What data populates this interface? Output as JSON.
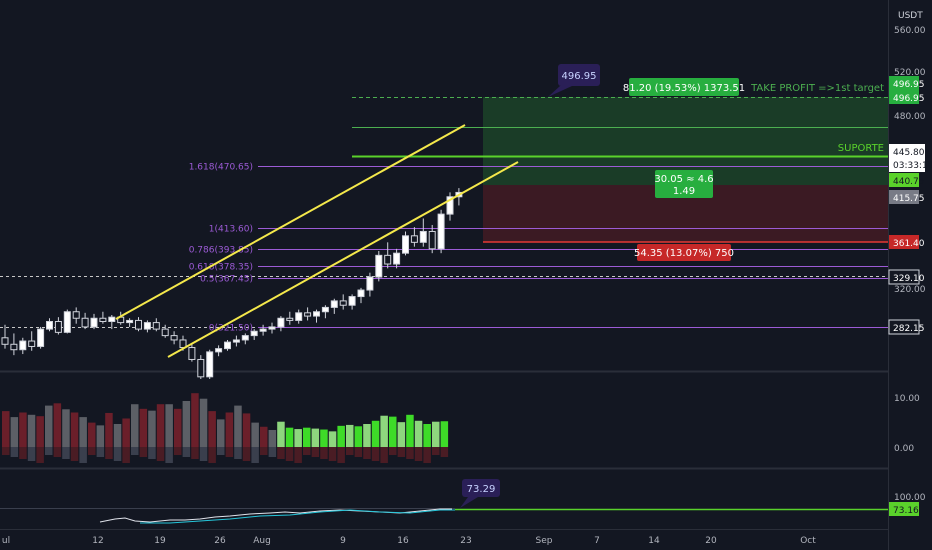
{
  "chart_data": [
    {
      "type": "candlestick",
      "title": "",
      "currency": "USDT",
      "x_ticks": [
        "ul",
        "12",
        "19",
        "26",
        "Aug",
        "9",
        "16",
        "23",
        "Sep",
        "7",
        "14",
        "20",
        "Oct"
      ],
      "y_ticks": [
        "560.00",
        "520.00",
        "480.00",
        "320.00"
      ],
      "candles": [
        [
          0,
          312,
          324,
          302,
          306
        ],
        [
          1,
          306,
          316,
          296,
          301
        ],
        [
          2,
          301,
          312,
          297,
          309
        ],
        [
          3,
          309,
          318,
          300,
          304
        ],
        [
          4,
          304,
          322,
          302,
          320
        ],
        [
          5,
          320,
          330,
          318,
          327
        ],
        [
          6,
          327,
          331,
          315,
          317
        ],
        [
          7,
          317,
          338,
          316,
          336
        ],
        [
          8,
          336,
          340,
          325,
          330
        ],
        [
          9,
          330,
          335,
          320,
          322
        ],
        [
          10,
          322,
          334,
          320,
          330
        ],
        [
          11,
          330,
          336,
          325,
          327
        ],
        [
          12,
          327,
          333,
          320,
          331
        ],
        [
          13,
          331,
          336,
          324,
          326
        ],
        [
          14,
          326,
          330,
          322,
          328
        ],
        [
          15,
          328,
          331,
          318,
          320
        ],
        [
          16,
          320,
          328,
          317,
          326
        ],
        [
          17,
          326,
          330,
          318,
          320
        ],
        [
          18,
          320,
          324,
          312,
          314
        ],
        [
          19,
          314,
          318,
          306,
          310
        ],
        [
          20,
          310,
          314,
          300,
          303
        ],
        [
          21,
          303,
          306,
          290,
          292
        ],
        [
          22,
          292,
          296,
          274,
          276
        ],
        [
          23,
          276,
          301,
          274,
          299
        ],
        [
          24,
          299,
          305,
          295,
          302
        ],
        [
          25,
          302,
          310,
          300,
          308
        ],
        [
          26,
          308,
          314,
          304,
          310
        ],
        [
          27,
          310,
          316,
          306,
          314
        ],
        [
          28,
          314,
          320,
          310,
          318
        ],
        [
          29,
          318,
          324,
          314,
          320
        ],
        [
          30,
          320,
          326,
          316,
          322
        ],
        [
          31,
          322,
          332,
          318,
          330
        ],
        [
          32,
          330,
          336,
          324,
          328
        ],
        [
          33,
          328,
          338,
          325,
          335
        ],
        [
          34,
          335,
          340,
          328,
          332
        ],
        [
          35,
          332,
          338,
          326,
          336
        ],
        [
          36,
          336,
          342,
          330,
          340
        ],
        [
          37,
          340,
          348,
          334,
          346
        ],
        [
          38,
          346,
          352,
          338,
          342
        ],
        [
          39,
          342,
          352,
          338,
          350
        ],
        [
          40,
          350,
          358,
          344,
          356
        ],
        [
          41,
          356,
          372,
          350,
          368
        ],
        [
          42,
          368,
          392,
          364,
          388
        ],
        [
          43,
          388,
          400,
          376,
          380
        ],
        [
          44,
          380,
          394,
          376,
          390
        ],
        [
          45,
          390,
          410,
          388,
          406
        ],
        [
          46,
          406,
          414,
          396,
          400
        ],
        [
          47,
          400,
          422,
          396,
          410
        ],
        [
          48,
          410,
          416,
          390,
          394
        ],
        [
          49,
          394,
          430,
          390,
          426
        ],
        [
          50,
          426,
          446,
          420,
          442
        ],
        [
          51,
          442,
          450,
          434,
          446
        ]
      ],
      "volume": {
        "tick_labels": [
          "10.00",
          "0.00"
        ],
        "bars": [
          [
            0,
            7.8,
            "maroon"
          ],
          [
            1,
            6.5,
            "gray"
          ],
          [
            2,
            7.5,
            "maroon"
          ],
          [
            3,
            7.0,
            "gray"
          ],
          [
            4,
            6.7,
            "maroon"
          ],
          [
            5,
            9.0,
            "gray"
          ],
          [
            6,
            9.5,
            "maroon"
          ],
          [
            7,
            8.2,
            "gray"
          ],
          [
            8,
            7.5,
            "maroon"
          ],
          [
            9,
            6.5,
            "gray"
          ],
          [
            10,
            5.3,
            "maroon"
          ],
          [
            11,
            4.7,
            "gray"
          ],
          [
            12,
            7.4,
            "maroon"
          ],
          [
            13,
            5.0,
            "gray"
          ],
          [
            14,
            6.2,
            "maroon"
          ],
          [
            15,
            9.3,
            "gray"
          ],
          [
            16,
            8.3,
            "maroon"
          ],
          [
            17,
            7.9,
            "gray"
          ],
          [
            18,
            9.3,
            "maroon"
          ],
          [
            19,
            9.3,
            "gray"
          ],
          [
            20,
            8.3,
            "maroon"
          ],
          [
            21,
            10.0,
            "gray"
          ],
          [
            22,
            11.7,
            "maroon"
          ],
          [
            23,
            10.5,
            "gray"
          ],
          [
            24,
            7.8,
            "maroon"
          ],
          [
            25,
            6.0,
            "gray"
          ],
          [
            26,
            7.5,
            "maroon"
          ],
          [
            27,
            9.0,
            "gray"
          ],
          [
            28,
            7.3,
            "maroon"
          ],
          [
            29,
            5.3,
            "gray"
          ],
          [
            30,
            4.4,
            "maroon"
          ],
          [
            31,
            3.7,
            "gray"
          ],
          [
            32,
            5.5,
            "lightgreen"
          ],
          [
            33,
            4.2,
            "green"
          ],
          [
            34,
            3.9,
            "lightgreen"
          ],
          [
            35,
            4.2,
            "green"
          ],
          [
            36,
            4.0,
            "lightgreen"
          ],
          [
            37,
            3.8,
            "green"
          ],
          [
            38,
            3.4,
            "lightgreen"
          ],
          [
            39,
            4.6,
            "green"
          ],
          [
            40,
            4.8,
            "lightgreen"
          ],
          [
            41,
            4.5,
            "green"
          ],
          [
            42,
            5.0,
            "lightgreen"
          ],
          [
            43,
            5.7,
            "green"
          ],
          [
            44,
            6.8,
            "lightgreen"
          ],
          [
            45,
            6.6,
            "green"
          ],
          [
            46,
            5.4,
            "lightgreen"
          ],
          [
            47,
            7.0,
            "green"
          ],
          [
            48,
            5.7,
            "lightgreen"
          ],
          [
            49,
            5.0,
            "green"
          ],
          [
            50,
            5.5,
            "lightgreen"
          ],
          [
            51,
            5.6,
            "green"
          ]
        ]
      },
      "fib_levels": [
        {
          "label": "1.618(470.65)",
          "value": 470.65
        },
        {
          "label": "1(413.60)",
          "value": 413.6
        },
        {
          "label": "0.786(393.85)",
          "value": 393.85
        },
        {
          "label": "0.618(378.35)",
          "value": 378.35
        },
        {
          "label": "0.5(367.45)",
          "value": 367.45
        },
        {
          "label": "0(321.50)",
          "value": 321.5
        }
      ],
      "dashed_levels": [
        329.1,
        282.15
      ],
      "annotations": {
        "target_callout": "496.95",
        "take_profit_label": "TAKE PROFIT =>1st target",
        "take_profit_box": "81.20 (19.53%) 1373.51",
        "support_label": "SUPORTE",
        "risk_reward_box": [
          "30.05 ≈ 4.6",
          "1.49"
        ],
        "stop_box": "54.35 (13.07%) 750",
        "rsi_callout": "73.29"
      },
      "price_tags": {
        "target_1": "496.95",
        "target_2": "496.95",
        "last_price": "445.80",
        "countdown": "03:33:10",
        "entry": "440.75",
        "level_415": "415.75",
        "stop": "361.40",
        "level_329": "329.10",
        "level_282": "282.15"
      },
      "rsi": {
        "tick_label": "100.00",
        "value_tag": "73.16"
      },
      "colors": {
        "background": "#131722",
        "up_candle": "#ffffff",
        "down_candle": "#131722",
        "channel": "#f4e84b",
        "fib": "#9c5bd6",
        "take_profit": "#4caf50",
        "stop": "#e53935",
        "support": "#5ad22b",
        "vol_gray": "#5c5f66",
        "vol_maroon": "#6b1f2a",
        "vol_green": "#3edb28",
        "vol_lightgreen": "#8ed67e"
      }
    }
  ]
}
